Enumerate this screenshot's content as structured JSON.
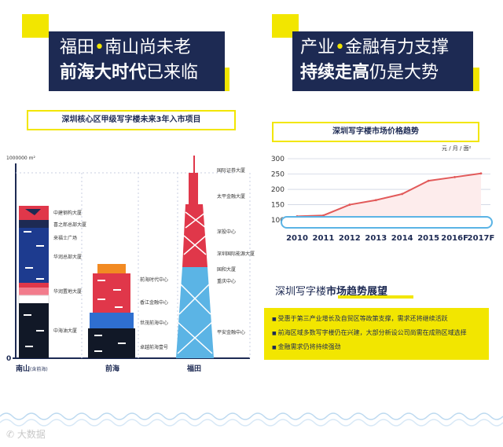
{
  "left_header": {
    "line1_a": "福田",
    "dot": "•",
    "line1_b": "南山尚未老",
    "line2_bold": "前海大时代",
    "line2_rest": "已来临"
  },
  "right_header": {
    "line1_a": "产业",
    "dot": "•",
    "line1_b": "金融有力支撑",
    "line2_bold": "持续走高",
    "line2_rest": "仍是大势"
  },
  "left_chart_title": "深圳核心区甲级写字楼未来3年入市项目",
  "unit_left": "1000000 m²",
  "districts": {
    "nanshan": "南山",
    "nanshan_sub": "(含前海)",
    "qianhai": "前海",
    "futian": "福田"
  },
  "nanshan_buildings": [
    "中建钢构大厦",
    "喜之郎总部大厦",
    "来福士广场",
    "华润总部大厦",
    "华润置地大厦",
    "中海油大厦"
  ],
  "qianhai_buildings": [
    "前海时代中心",
    "香江金融中心",
    "世茂前海中心",
    "卓越前海壹号"
  ],
  "futian_buildings": [
    "国际证券大厦",
    "太平金融大厦",
    "深投中心",
    "深圳国际能源大厦",
    "国和大厦",
    "重庆中心",
    "平安金融中心"
  ],
  "right_chart_title": "深圳写字楼市场价格趋势",
  "unit_right": "元 / 月 / 面²",
  "chart_data": {
    "type": "line",
    "title": "深圳写字楼市场价格趋势",
    "x": [
      "2010",
      "2011",
      "2012",
      "2013",
      "2014",
      "2015",
      "2016F",
      "2017F"
    ],
    "y_ticks": [
      100,
      150,
      200,
      250,
      300
    ],
    "ylim": [
      90,
      300
    ],
    "series": [
      {
        "values": [
          112,
          115,
          150,
          165,
          185,
          228,
          240,
          252
        ]
      }
    ],
    "color": "#e25a5a",
    "grid": true
  },
  "outlook": {
    "title_a": "深圳写字楼",
    "title_b": "市场趋势展望",
    "bullets": [
      "受惠于第三产业增长及自贸区等政策支撑，需求还将继续活跃",
      "前海区域多数写字楼仍在兴建，大部分新设公司尚需在成熟区域选择",
      "金融需求仍将持续强劲"
    ]
  },
  "watermark": "大数据"
}
